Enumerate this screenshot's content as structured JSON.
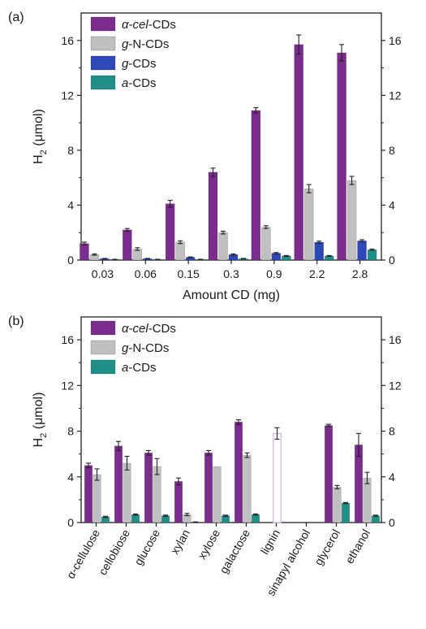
{
  "chart_data": [
    {
      "panel": "(a)",
      "type": "bar",
      "title": "",
      "xlabel": "Amount CD (mg)",
      "ylabel": "H",
      "ylabel_sub": "2",
      "ylabel_unit": "(μmol)",
      "categories": [
        "0.03",
        "0.06",
        "0.15",
        "0.3",
        "0.9",
        "2.2",
        "2.8"
      ],
      "ylim": [
        0,
        18
      ],
      "yticks": [
        0,
        4,
        8,
        12,
        16
      ],
      "legend_position": "top-left",
      "series": [
        {
          "name": "α-cel-CDs",
          "name_italic": "α-cel",
          "name_rest": "-CDs",
          "color": "#7b2d8e",
          "values": [
            1.2,
            2.2,
            4.1,
            6.4,
            10.9,
            15.7,
            15.1
          ],
          "errors": [
            0.1,
            0.1,
            0.25,
            0.3,
            0.2,
            0.7,
            0.6
          ]
        },
        {
          "name": "g-N-CDs",
          "name_italic": "g",
          "name_rest": "-N-CDs",
          "color": "#c0c0c0",
          "values": [
            0.4,
            0.8,
            1.3,
            2.0,
            2.4,
            5.2,
            5.8
          ],
          "errors": [
            0.05,
            0.1,
            0.1,
            0.1,
            0.1,
            0.3,
            0.3
          ]
        },
        {
          "name": "g-CDs",
          "name_italic": "g",
          "name_rest": "-CDs",
          "color": "#2e48b8",
          "values": [
            0.1,
            0.1,
            0.2,
            0.4,
            0.5,
            1.3,
            1.4
          ],
          "errors": [
            0.02,
            0.02,
            0.03,
            0.05,
            0.05,
            0.08,
            0.08
          ]
        },
        {
          "name": "a-CDs",
          "name_italic": "a",
          "name_rest": "-CDs",
          "color": "#1f8f88",
          "values": [
            0.05,
            0.05,
            0.05,
            0.1,
            0.3,
            0.3,
            0.75
          ],
          "errors": [
            0.01,
            0.01,
            0.01,
            0.02,
            0.03,
            0.03,
            0.05
          ]
        }
      ]
    },
    {
      "panel": "(b)",
      "type": "bar",
      "title": "",
      "xlabel": "",
      "ylabel": "H",
      "ylabel_sub": "2",
      "ylabel_unit": "(μmol)",
      "categories": [
        "α-cellulose",
        "cellobiose",
        "glucose",
        "xylan",
        "xylose",
        "galactose",
        "lignin",
        "sinapyl alcohol",
        "glycerol",
        "ethanol"
      ],
      "ylim": [
        0,
        18
      ],
      "yticks": [
        0,
        4,
        8,
        12,
        16
      ],
      "legend_position": "top-left",
      "series": [
        {
          "name": "α-cel-CDs",
          "name_italic": "α-cel",
          "name_rest": "-CDs",
          "color": "#7b2d8e",
          "values": [
            5.0,
            6.7,
            6.1,
            3.6,
            6.1,
            8.8,
            0,
            0,
            8.5,
            6.8
          ],
          "errors": [
            0.2,
            0.4,
            0.2,
            0.3,
            0.2,
            0.2,
            0,
            0,
            0.1,
            1.0
          ]
        },
        {
          "name": "g-N-CDs",
          "name_italic": "g",
          "name_rest": "-N-CDs",
          "color": "#c0c0c0",
          "values": [
            4.2,
            5.2,
            4.9,
            0.7,
            4.9,
            5.9,
            7.8,
            0,
            3.1,
            3.9
          ],
          "errors": [
            0.5,
            0.6,
            0.7,
            0.1,
            0,
            0.2,
            0.5,
            0,
            0.15,
            0.5
          ],
          "hollow_indices": [
            6
          ],
          "hollow_color": "#c8b4dc"
        },
        {
          "name": "a-CDs",
          "name_italic": "a",
          "name_rest": "-CDs",
          "color": "#1f8f88",
          "values": [
            0.5,
            0.7,
            0.6,
            0.05,
            0.6,
            0.7,
            0,
            0,
            1.7,
            0.6
          ],
          "errors": [
            0.05,
            0.05,
            0.05,
            0.01,
            0.05,
            0.05,
            0,
            0,
            0.05,
            0.05
          ]
        }
      ]
    }
  ]
}
